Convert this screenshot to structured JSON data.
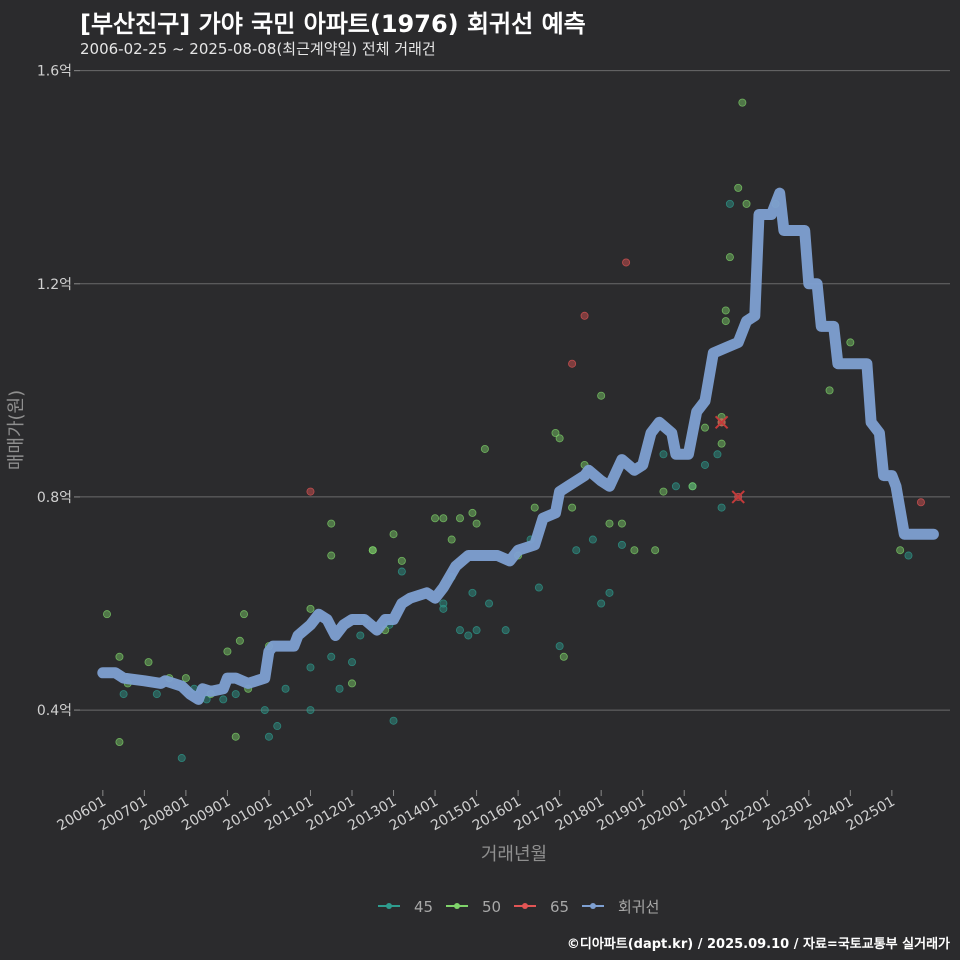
{
  "header": {
    "title": "[부산진구] 가야 국민 아파트(1976) 회귀선 예측",
    "subtitle": "2006-02-25 ~ 2025-08-08(최근계약일) 전체 거래건"
  },
  "caption": "©디아파트(dapt.kr) / 2025.09.10 / 자료=국토교통부 실거래가",
  "colors": {
    "background": "#2b2b2d",
    "s45": "#2e9c8e",
    "s50": "#7fd36a",
    "s65": "#e25555",
    "regression": "#7ea0d2"
  },
  "chart_data": {
    "type": "scatter",
    "title": "[부산진구] 가야 국민 아파트(1976) 회귀선 예측",
    "xlabel": "거래년월",
    "ylabel": "매매가(원)",
    "x_unit": "fractional year",
    "ylim": [
      0.25,
      1.62
    ],
    "xlim": [
      2005.45,
      2026.4
    ],
    "y_ticks": [
      {
        "value": 0.4,
        "label": "0.4억"
      },
      {
        "value": 0.8,
        "label": "0.8억"
      },
      {
        "value": 1.2,
        "label": "1.2억"
      },
      {
        "value": 1.6,
        "label": "1.6억"
      }
    ],
    "x_ticks": [
      {
        "value": 2006,
        "label": "200601"
      },
      {
        "value": 2007,
        "label": "200701"
      },
      {
        "value": 2008,
        "label": "200801"
      },
      {
        "value": 2009,
        "label": "200901"
      },
      {
        "value": 2010,
        "label": "201001"
      },
      {
        "value": 2011,
        "label": "201101"
      },
      {
        "value": 2012,
        "label": "201201"
      },
      {
        "value": 2013,
        "label": "201301"
      },
      {
        "value": 2014,
        "label": "201401"
      },
      {
        "value": 2015,
        "label": "201501"
      },
      {
        "value": 2016,
        "label": "201601"
      },
      {
        "value": 2017,
        "label": "201701"
      },
      {
        "value": 2018,
        "label": "201801"
      },
      {
        "value": 2019,
        "label": "201901"
      },
      {
        "value": 2020,
        "label": "202001"
      },
      {
        "value": 2021,
        "label": "202101"
      },
      {
        "value": 2022,
        "label": "202201"
      },
      {
        "value": 2023,
        "label": "202301"
      },
      {
        "value": 2024,
        "label": "202401"
      },
      {
        "value": 2025,
        "label": "202501"
      }
    ],
    "legend": [
      "45",
      "50",
      "65",
      "회귀선"
    ],
    "series": [
      {
        "name": "45",
        "points": [
          [
            2006.5,
            0.43
          ],
          [
            2007.3,
            0.43
          ],
          [
            2007.9,
            0.31
          ],
          [
            2008.2,
            0.44
          ],
          [
            2008.5,
            0.42
          ],
          [
            2008.9,
            0.42
          ],
          [
            2009.2,
            0.43
          ],
          [
            2009.9,
            0.4
          ],
          [
            2010.0,
            0.35
          ],
          [
            2010.2,
            0.37
          ],
          [
            2010.4,
            0.44
          ],
          [
            2011.0,
            0.4
          ],
          [
            2011.0,
            0.48
          ],
          [
            2011.5,
            0.5
          ],
          [
            2011.7,
            0.44
          ],
          [
            2012.0,
            0.49
          ],
          [
            2012.2,
            0.54
          ],
          [
            2012.3,
            0.57
          ],
          [
            2012.9,
            0.56
          ],
          [
            2013.0,
            0.38
          ],
          [
            2013.2,
            0.66
          ],
          [
            2014.2,
            0.59
          ],
          [
            2014.2,
            0.6
          ],
          [
            2014.4,
            0.65
          ],
          [
            2014.6,
            0.55
          ],
          [
            2014.8,
            0.54
          ],
          [
            2014.9,
            0.62
          ],
          [
            2015.0,
            0.55
          ],
          [
            2015.3,
            0.6
          ],
          [
            2015.7,
            0.55
          ],
          [
            2016.3,
            0.72
          ],
          [
            2016.5,
            0.63
          ],
          [
            2017.0,
            0.52
          ],
          [
            2017.4,
            0.7
          ],
          [
            2017.8,
            0.72
          ],
          [
            2018.0,
            0.6
          ],
          [
            2018.2,
            0.62
          ],
          [
            2018.5,
            0.71
          ],
          [
            2019.5,
            0.88
          ],
          [
            2019.8,
            0.82
          ],
          [
            2020.2,
            0.82
          ],
          [
            2020.5,
            0.86
          ],
          [
            2020.8,
            0.88
          ],
          [
            2020.9,
            0.78
          ],
          [
            2021.1,
            1.35
          ],
          [
            2025.4,
            0.69
          ]
        ]
      },
      {
        "name": "50",
        "points": [
          [
            2006.1,
            0.58
          ],
          [
            2006.4,
            0.34
          ],
          [
            2006.4,
            0.5
          ],
          [
            2006.6,
            0.45
          ],
          [
            2007.1,
            0.49
          ],
          [
            2007.6,
            0.46
          ],
          [
            2008.0,
            0.46
          ],
          [
            2008.6,
            0.43
          ],
          [
            2009.0,
            0.51
          ],
          [
            2009.2,
            0.35
          ],
          [
            2009.3,
            0.53
          ],
          [
            2009.4,
            0.58
          ],
          [
            2009.5,
            0.44
          ],
          [
            2010.0,
            0.52
          ],
          [
            2011.0,
            0.59
          ],
          [
            2011.5,
            0.69
          ],
          [
            2011.5,
            0.75
          ],
          [
            2012.0,
            0.45
          ],
          [
            2012.5,
            0.7
          ],
          [
            2012.5,
            0.7
          ],
          [
            2012.8,
            0.55
          ],
          [
            2013.0,
            0.73
          ],
          [
            2013.2,
            0.68
          ],
          [
            2014.0,
            0.76
          ],
          [
            2014.2,
            0.76
          ],
          [
            2014.4,
            0.72
          ],
          [
            2014.6,
            0.76
          ],
          [
            2014.9,
            0.77
          ],
          [
            2015.0,
            0.75
          ],
          [
            2015.2,
            0.89
          ],
          [
            2016.0,
            0.69
          ],
          [
            2016.4,
            0.78
          ],
          [
            2016.9,
            0.92
          ],
          [
            2017.0,
            0.91
          ],
          [
            2017.1,
            0.5
          ],
          [
            2017.3,
            0.78
          ],
          [
            2017.6,
            0.86
          ],
          [
            2018.0,
            0.99
          ],
          [
            2018.2,
            0.75
          ],
          [
            2018.5,
            0.75
          ],
          [
            2018.8,
            0.7
          ],
          [
            2019.3,
            0.7
          ],
          [
            2019.5,
            0.81
          ],
          [
            2020.2,
            0.82
          ],
          [
            2020.5,
            0.93
          ],
          [
            2020.9,
            0.94
          ],
          [
            2020.9,
            0.95
          ],
          [
            2020.9,
            0.9
          ],
          [
            2021.0,
            1.13
          ],
          [
            2021.0,
            1.15
          ],
          [
            2021.1,
            1.25
          ],
          [
            2021.3,
            1.38
          ],
          [
            2021.4,
            1.54
          ],
          [
            2021.5,
            1.35
          ],
          [
            2022.2,
            1.35
          ],
          [
            2023.5,
            1.0
          ],
          [
            2024.0,
            1.09
          ],
          [
            2025.2,
            0.7
          ]
        ]
      },
      {
        "name": "65",
        "points": [
          [
            2011.0,
            0.81
          ],
          [
            2017.3,
            1.05
          ],
          [
            2017.6,
            1.14
          ],
          [
            2018.6,
            1.24
          ],
          [
            2020.9,
            0.94
          ],
          [
            2021.3,
            0.8
          ],
          [
            2025.7,
            0.79
          ]
        ]
      }
    ],
    "cross_markers": [
      [
        2020.9,
        0.94
      ],
      [
        2021.3,
        0.8
      ]
    ],
    "regression": {
      "name": "회귀선",
      "points": [
        [
          2006.0,
          0.47
        ],
        [
          2006.3,
          0.47
        ],
        [
          2006.5,
          0.46
        ],
        [
          2007.0,
          0.455
        ],
        [
          2007.4,
          0.45
        ],
        [
          2007.5,
          0.455
        ],
        [
          2007.9,
          0.445
        ],
        [
          2008.1,
          0.43
        ],
        [
          2008.3,
          0.42
        ],
        [
          2008.4,
          0.44
        ],
        [
          2008.6,
          0.435
        ],
        [
          2008.9,
          0.44
        ],
        [
          2009.0,
          0.46
        ],
        [
          2009.2,
          0.46
        ],
        [
          2009.5,
          0.45
        ],
        [
          2009.9,
          0.46
        ],
        [
          2010.0,
          0.51
        ],
        [
          2010.1,
          0.52
        ],
        [
          2010.6,
          0.52
        ],
        [
          2010.7,
          0.54
        ],
        [
          2011.0,
          0.56
        ],
        [
          2011.2,
          0.58
        ],
        [
          2011.4,
          0.57
        ],
        [
          2011.5,
          0.555
        ],
        [
          2011.6,
          0.54
        ],
        [
          2011.8,
          0.56
        ],
        [
          2012.0,
          0.57
        ],
        [
          2012.3,
          0.57
        ],
        [
          2012.6,
          0.55
        ],
        [
          2012.8,
          0.57
        ],
        [
          2013.0,
          0.57
        ],
        [
          2013.2,
          0.6
        ],
        [
          2013.4,
          0.61
        ],
        [
          2013.8,
          0.62
        ],
        [
          2014.0,
          0.61
        ],
        [
          2014.2,
          0.63
        ],
        [
          2014.5,
          0.67
        ],
        [
          2014.8,
          0.69
        ],
        [
          2015.5,
          0.69
        ],
        [
          2015.8,
          0.68
        ],
        [
          2016.0,
          0.7
        ],
        [
          2016.4,
          0.71
        ],
        [
          2016.6,
          0.76
        ],
        [
          2016.9,
          0.77
        ],
        [
          2017.0,
          0.81
        ],
        [
          2017.2,
          0.82
        ],
        [
          2017.6,
          0.84
        ],
        [
          2017.7,
          0.85
        ],
        [
          2018.0,
          0.83
        ],
        [
          2018.2,
          0.82
        ],
        [
          2018.5,
          0.87
        ],
        [
          2018.8,
          0.85
        ],
        [
          2019.0,
          0.86
        ],
        [
          2019.2,
          0.92
        ],
        [
          2019.4,
          0.94
        ],
        [
          2019.7,
          0.92
        ],
        [
          2019.8,
          0.88
        ],
        [
          2020.1,
          0.88
        ],
        [
          2020.3,
          0.96
        ],
        [
          2020.5,
          0.98
        ],
        [
          2020.7,
          1.07
        ],
        [
          2021.0,
          1.08
        ],
        [
          2021.3,
          1.09
        ],
        [
          2021.5,
          1.13
        ],
        [
          2021.7,
          1.14
        ],
        [
          2021.8,
          1.33
        ],
        [
          2022.1,
          1.33
        ],
        [
          2022.3,
          1.37
        ],
        [
          2022.4,
          1.3
        ],
        [
          2022.9,
          1.3
        ],
        [
          2023.0,
          1.2
        ],
        [
          2023.2,
          1.2
        ],
        [
          2023.3,
          1.12
        ],
        [
          2023.6,
          1.12
        ],
        [
          2023.7,
          1.05
        ],
        [
          2024.1,
          1.05
        ],
        [
          2024.4,
          1.05
        ],
        [
          2024.5,
          0.94
        ],
        [
          2024.7,
          0.92
        ],
        [
          2024.8,
          0.84
        ],
        [
          2025.0,
          0.84
        ],
        [
          2025.1,
          0.82
        ],
        [
          2025.3,
          0.73
        ],
        [
          2025.8,
          0.73
        ],
        [
          2026.0,
          0.73
        ]
      ]
    }
  }
}
